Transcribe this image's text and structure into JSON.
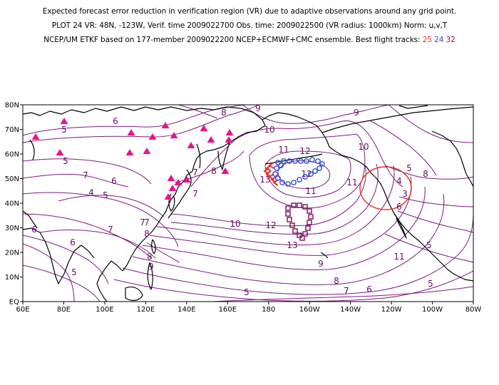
{
  "header": {
    "line1": "Expected forecast error reduction in verification region (VR) due to adaptive observations around any grid point.",
    "line2": "PLOT 24 VR: 48N, -123W, Verif. time 2009022700 Obs. time: 2009022500 (VR radius: 1000km) Norm: u,v,T",
    "line3_prefix": "NCEP/UM ETKF based on 177-member 2009022200 NCEP+ECMWF+CMC ensemble. Best flight tracks:",
    "track_25": "25",
    "track_24": "24",
    "track_32": "32"
  },
  "colors": {
    "contour": "#7b1d7e",
    "coast": "#000000",
    "track_25": "#e8312a",
    "track_24": "#2d4fd7",
    "track_32": "#7a0f54",
    "raob_triangles": "#e8148c",
    "verification_circle": "#e8312a"
  },
  "map": {
    "lat_labels": [
      "80N",
      "70N",
      "60N",
      "50N",
      "40N",
      "30N",
      "20N",
      "10N",
      "EQ"
    ],
    "lon_labels": [
      "60E",
      "80E",
      "100E",
      "120E",
      "140E",
      "160E",
      "180",
      "160W",
      "140W",
      "120W",
      "100W",
      "80W"
    ],
    "contour_labels": [
      "5",
      "6",
      "8",
      "9",
      "9",
      "10",
      "10",
      "11",
      "12",
      "13",
      "11",
      "8",
      "5",
      "7",
      "6",
      "4",
      "5",
      "6",
      "7",
      "7",
      "8",
      "7",
      "10",
      "12",
      "11",
      "12",
      "13",
      "9",
      "8",
      "7",
      "6",
      "5",
      "5",
      "6",
      "8",
      "9",
      "11",
      "6",
      "5",
      "4",
      "3",
      "5",
      "7",
      "7",
      "8",
      "5"
    ],
    "verification_region": {
      "lat": 48,
      "lon": -123,
      "radius_km": 1000
    }
  }
}
